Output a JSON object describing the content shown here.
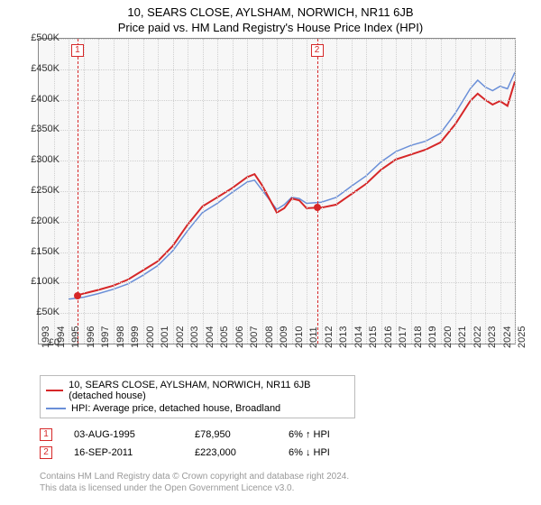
{
  "title": "10, SEARS CLOSE, AYLSHAM, NORWICH, NR11 6JB",
  "subtitle": "Price paid vs. HM Land Registry's House Price Index (HPI)",
  "chart": {
    "type": "line",
    "background_color": "#f7f7f7",
    "grid_color": "#cfcfcf",
    "border_color": "#888888",
    "xlim": [
      1993,
      2025
    ],
    "ylim": [
      0,
      500000
    ],
    "ytick_step": 50000,
    "yticks": [
      "£0",
      "£50K",
      "£100K",
      "£150K",
      "£200K",
      "£250K",
      "£300K",
      "£350K",
      "£400K",
      "£450K",
      "£500K"
    ],
    "xticks": [
      "1993",
      "1994",
      "1995",
      "1996",
      "1997",
      "1998",
      "1999",
      "2000",
      "2001",
      "2002",
      "2003",
      "2004",
      "2005",
      "2006",
      "2007",
      "2008",
      "2009",
      "2010",
      "2011",
      "2012",
      "2013",
      "2014",
      "2015",
      "2016",
      "2017",
      "2018",
      "2019",
      "2020",
      "2021",
      "2022",
      "2023",
      "2024",
      "2025"
    ],
    "series": [
      {
        "name": "10, SEARS CLOSE, AYLSHAM, NORWICH, NR11 6JB (detached house)",
        "color": "#d62728",
        "line_width": 2,
        "data": [
          [
            1995.6,
            78950
          ],
          [
            1996,
            82000
          ],
          [
            1997,
            88000
          ],
          [
            1998,
            95000
          ],
          [
            1999,
            105000
          ],
          [
            2000,
            120000
          ],
          [
            2001,
            135000
          ],
          [
            2002,
            160000
          ],
          [
            2003,
            195000
          ],
          [
            2004,
            225000
          ],
          [
            2005,
            240000
          ],
          [
            2006,
            255000
          ],
          [
            2007,
            273000
          ],
          [
            2007.5,
            278000
          ],
          [
            2008,
            260000
          ],
          [
            2009,
            215000
          ],
          [
            2009.5,
            222000
          ],
          [
            2010,
            238000
          ],
          [
            2010.5,
            235000
          ],
          [
            2011,
            222000
          ],
          [
            2011.7,
            223000
          ],
          [
            2012,
            223000
          ],
          [
            2013,
            228000
          ],
          [
            2014,
            245000
          ],
          [
            2015,
            262000
          ],
          [
            2016,
            285000
          ],
          [
            2017,
            302000
          ],
          [
            2018,
            310000
          ],
          [
            2019,
            318000
          ],
          [
            2020,
            330000
          ],
          [
            2021,
            360000
          ],
          [
            2022,
            398000
          ],
          [
            2022.5,
            410000
          ],
          [
            2023,
            400000
          ],
          [
            2023.5,
            392000
          ],
          [
            2024,
            398000
          ],
          [
            2024.5,
            390000
          ],
          [
            2025,
            430000
          ]
        ]
      },
      {
        "name": "HPI: Average price, detached house, Broadland",
        "color": "#6a8fd8",
        "line_width": 1.5,
        "data": [
          [
            1995,
            73000
          ],
          [
            1996,
            76000
          ],
          [
            1997,
            82000
          ],
          [
            1998,
            89000
          ],
          [
            1999,
            98000
          ],
          [
            2000,
            112000
          ],
          [
            2001,
            128000
          ],
          [
            2002,
            152000
          ],
          [
            2003,
            185000
          ],
          [
            2004,
            215000
          ],
          [
            2005,
            230000
          ],
          [
            2006,
            248000
          ],
          [
            2007,
            265000
          ],
          [
            2007.5,
            268000
          ],
          [
            2008,
            252000
          ],
          [
            2009,
            220000
          ],
          [
            2009.5,
            228000
          ],
          [
            2010,
            240000
          ],
          [
            2010.5,
            238000
          ],
          [
            2011,
            230000
          ],
          [
            2012,
            232000
          ],
          [
            2013,
            240000
          ],
          [
            2014,
            258000
          ],
          [
            2015,
            275000
          ],
          [
            2016,
            298000
          ],
          [
            2017,
            315000
          ],
          [
            2018,
            325000
          ],
          [
            2019,
            332000
          ],
          [
            2020,
            345000
          ],
          [
            2021,
            378000
          ],
          [
            2022,
            418000
          ],
          [
            2022.5,
            432000
          ],
          [
            2023,
            421000
          ],
          [
            2023.5,
            415000
          ],
          [
            2024,
            422000
          ],
          [
            2024.5,
            418000
          ],
          [
            2025,
            445000
          ]
        ]
      }
    ],
    "reference_lines": [
      {
        "x": 1995.6,
        "color": "#d62728",
        "label": "1",
        "marker_y": 78950
      },
      {
        "x": 2011.7,
        "color": "#d62728",
        "label": "2",
        "marker_y": 223000
      }
    ],
    "label_fontsize": 11
  },
  "legend": {
    "series": [
      {
        "color": "#d62728",
        "label": "10, SEARS CLOSE, AYLSHAM, NORWICH, NR11 6JB (detached house)"
      },
      {
        "color": "#6a8fd8",
        "label": "HPI: Average price, detached house, Broadland"
      }
    ]
  },
  "sales": [
    {
      "num": "1",
      "color": "#d62728",
      "date": "03-AUG-1995",
      "price": "£78,950",
      "delta": "6% ↑ HPI"
    },
    {
      "num": "2",
      "color": "#d62728",
      "date": "16-SEP-2011",
      "price": "£223,000",
      "delta": "6% ↓ HPI"
    }
  ],
  "footer": {
    "line1": "Contains HM Land Registry data © Crown copyright and database right 2024.",
    "line2": "This data is licensed under the Open Government Licence v3.0."
  }
}
